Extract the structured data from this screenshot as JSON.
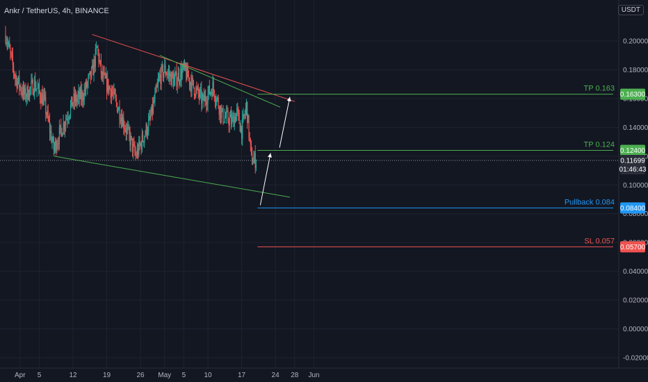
{
  "header": {
    "symbol_title": "Ankr / TetherUS, 4h, BINANCE",
    "currency": "USDT"
  },
  "colors": {
    "background": "#131722",
    "grid": "#1f2330",
    "axis_text": "#b2b5be",
    "candle_up": "#26a69a",
    "candle_down": "#ef5350",
    "resistance_line": "#ef5350",
    "support_lines": "#4caf50",
    "target_lines": "#4caf50",
    "pullback_line": "#2196f3",
    "stop_line": "#ef5350",
    "arrows": "#ffffff"
  },
  "chart_data": {
    "type": "candlestick",
    "title": "Ankr / TetherUS, 4h, BINANCE",
    "xlabel": "",
    "ylabel": "",
    "grid": true,
    "x_tick_labels": [
      "Apr",
      "5",
      "12",
      "19",
      "26",
      "May",
      "5",
      "10",
      "17",
      "24",
      "28",
      "Jun"
    ],
    "y_tick_labels": [
      "0.20000",
      "0.18000",
      "0.16000",
      "0.14000",
      "0.12000",
      "0.10000",
      "0.08000",
      "0.06000",
      "0.04000",
      "0.02000",
      "0.00000",
      "-0.02000"
    ],
    "ylim": [
      -0.025,
      0.225
    ],
    "price_series_approx": [
      [
        "Mar 29",
        0.205
      ],
      [
        "Mar 31",
        0.175
      ],
      [
        "Apr 2",
        0.162
      ],
      [
        "Apr 4",
        0.17
      ],
      [
        "Apr 6",
        0.158
      ],
      [
        "Apr 8",
        0.125
      ],
      [
        "Apr 10",
        0.142
      ],
      [
        "Apr 12",
        0.158
      ],
      [
        "Apr 14",
        0.162
      ],
      [
        "Apr 16",
        0.178
      ],
      [
        "Apr 17",
        0.195
      ],
      [
        "Apr 18",
        0.175
      ],
      [
        "Apr 20",
        0.165
      ],
      [
        "Apr 22",
        0.148
      ],
      [
        "Apr 24",
        0.13
      ],
      [
        "Apr 25",
        0.12
      ],
      [
        "Apr 26",
        0.128
      ],
      [
        "Apr 28",
        0.145
      ],
      [
        "Apr 30",
        0.175
      ],
      [
        "May 1",
        0.18
      ],
      [
        "May 3",
        0.172
      ],
      [
        "May 5",
        0.18
      ],
      [
        "May 7",
        0.168
      ],
      [
        "May 9",
        0.158
      ],
      [
        "May 11",
        0.168
      ],
      [
        "May 13",
        0.148
      ],
      [
        "May 15",
        0.144
      ],
      [
        "May 16",
        0.15
      ],
      [
        "May 17",
        0.138
      ],
      [
        "May 18",
        0.155
      ],
      [
        "May 19",
        0.118
      ],
      [
        "May 20",
        0.11699
      ]
    ],
    "current_price": 0.11699,
    "current_price_label": "0.11699",
    "countdown": "01:46:43",
    "levels": [
      {
        "label": "TP 0.163",
        "price": 0.163,
        "tag": "0.16300"
      },
      {
        "label": "TP 0.124",
        "price": 0.124,
        "tag": "0.12400"
      },
      {
        "label": "Pullback 0.084",
        "price": 0.084,
        "tag": "0.08400"
      },
      {
        "label": "SL 0.057",
        "price": 0.057,
        "tag": "0.05700"
      }
    ],
    "trendlines": [
      {
        "name": "resistance",
        "from": [
          "Apr 16",
          0.2045
        ],
        "to": [
          "May 28",
          0.158
        ]
      },
      {
        "name": "channel-upper",
        "from": [
          "Apr 30",
          0.19
        ],
        "to": [
          "May 25",
          0.154
        ]
      },
      {
        "name": "support",
        "from": [
          "Apr 8",
          0.12
        ],
        "to": [
          "May 27",
          0.0915
        ]
      }
    ]
  }
}
